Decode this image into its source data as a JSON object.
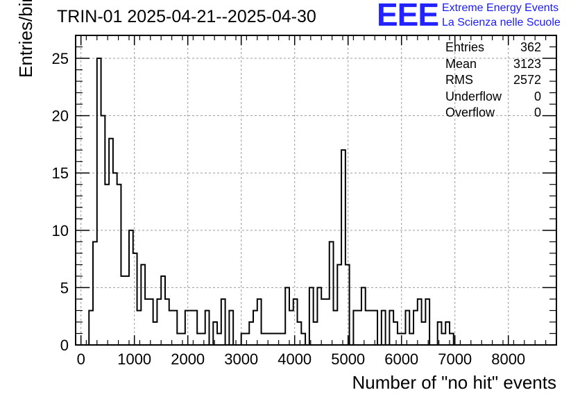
{
  "chart_data": {
    "type": "histogram",
    "title": "TRIN-01 2025-04-21--2025-04-30",
    "xlabel": "Number of \"no hit\" events",
    "ylabel": "Entries/bin",
    "xlim": [
      -100,
      8900
    ],
    "ylim": [
      0,
      27
    ],
    "bin_width": 75,
    "x_start": 150,
    "xticks": [
      0,
      1000,
      2000,
      3000,
      4000,
      5000,
      6000,
      7000,
      8000
    ],
    "yticks": [
      0,
      5,
      10,
      15,
      20,
      25
    ],
    "grid": true,
    "values": [
      3,
      9,
      25,
      20,
      14,
      18,
      15,
      14,
      6,
      6,
      10,
      8,
      3,
      7,
      4,
      4,
      2,
      4,
      6,
      4,
      3,
      3,
      1,
      1,
      3,
      3,
      3,
      1,
      1,
      3,
      0,
      2,
      1,
      4,
      0,
      3,
      0,
      0,
      1,
      1,
      2,
      3,
      4,
      1,
      1,
      1,
      1,
      1,
      1,
      5,
      3,
      4,
      2,
      1,
      0,
      5,
      2,
      5,
      4,
      4,
      9,
      3,
      7,
      17,
      7,
      0,
      3,
      3,
      5,
      3,
      3,
      3,
      0,
      3,
      0,
      3,
      2,
      1,
      1,
      3,
      1,
      3,
      4,
      2,
      4,
      0,
      0,
      2,
      1,
      2,
      1,
      0
    ],
    "stats": [
      {
        "label": "Entries",
        "value": "362"
      },
      {
        "label": "Mean",
        "value": "3123"
      },
      {
        "label": "RMS",
        "value": "2572"
      },
      {
        "label": "Underflow",
        "value": "0"
      },
      {
        "label": "Overflow",
        "value": "0"
      }
    ],
    "line_color": "#000000",
    "grid_color": "#9a9a9a"
  },
  "logo": {
    "mark": "EEE",
    "line1": "Extreme Energy Events",
    "line2": "La Scienza nelle Scuole",
    "color": "#1a1aff"
  }
}
